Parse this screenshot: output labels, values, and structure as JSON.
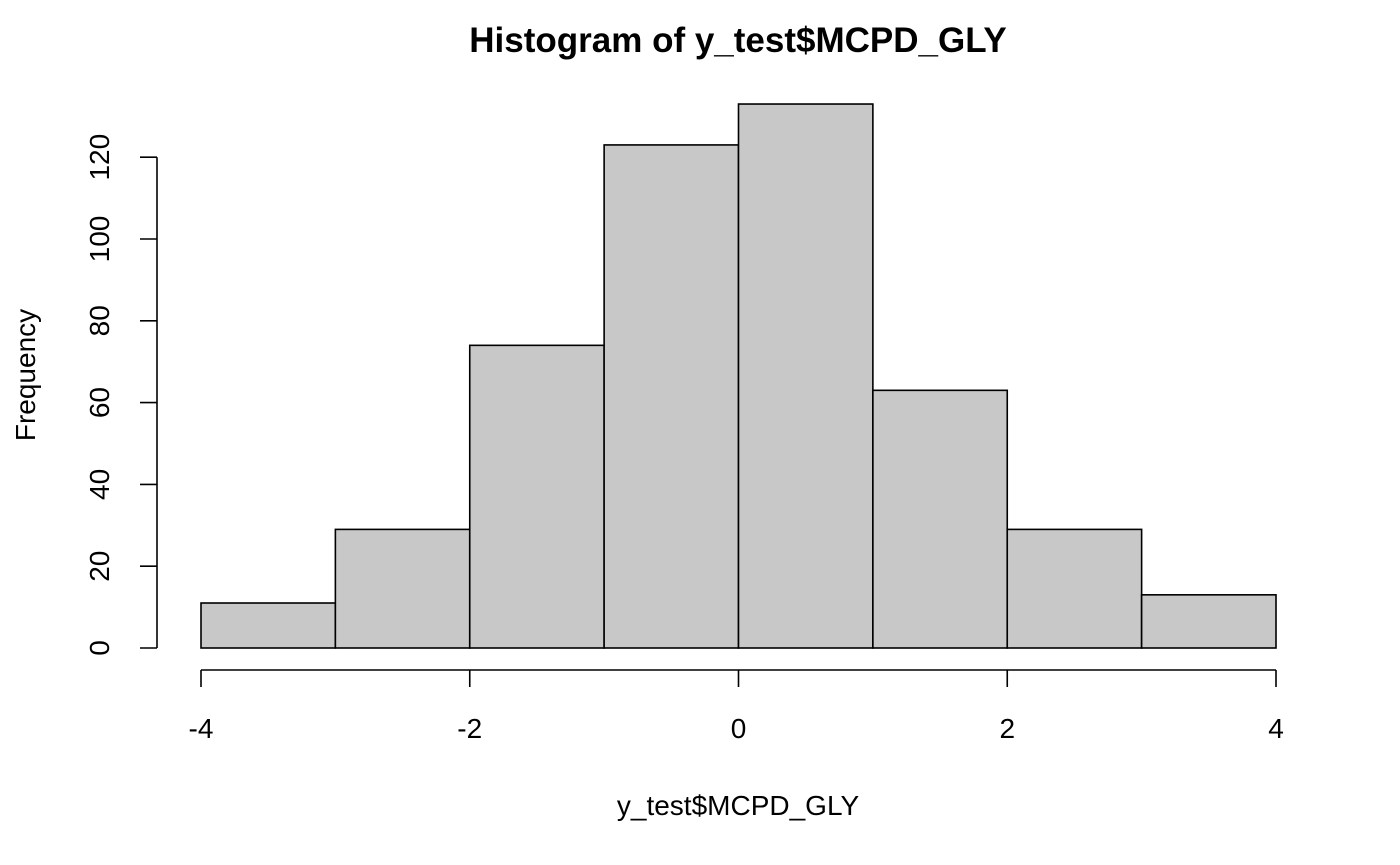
{
  "chart_data": {
    "type": "bar",
    "subtype": "histogram",
    "title": "Histogram of y_test$MCPD_GLY",
    "xlabel": "y_test$MCPD_GLY",
    "ylabel": "Frequency",
    "bins": [
      {
        "from": -4,
        "to": -3,
        "count": 11
      },
      {
        "from": -3,
        "to": -2,
        "count": 29
      },
      {
        "from": -2,
        "to": -1,
        "count": 74
      },
      {
        "from": -1,
        "to": 0,
        "count": 123
      },
      {
        "from": 0,
        "to": 1,
        "count": 133
      },
      {
        "from": 1,
        "to": 2,
        "count": 63
      },
      {
        "from": 2,
        "to": 3,
        "count": 29
      },
      {
        "from": 3,
        "to": 4,
        "count": 13
      }
    ],
    "xlim": [
      -4,
      4
    ],
    "ylim": [
      0,
      133
    ],
    "xticks": [
      {
        "value": -4,
        "label": "-4"
      },
      {
        "value": -2,
        "label": "-2"
      },
      {
        "value": 0,
        "label": "0"
      },
      {
        "value": 2,
        "label": "2"
      },
      {
        "value": 4,
        "label": "4"
      }
    ],
    "yticks": [
      {
        "value": 0,
        "label": "0"
      },
      {
        "value": 20,
        "label": "20"
      },
      {
        "value": 40,
        "label": "40"
      },
      {
        "value": 60,
        "label": "60"
      },
      {
        "value": 80,
        "label": "80"
      },
      {
        "value": 100,
        "label": "100"
      },
      {
        "value": 120,
        "label": "120"
      }
    ],
    "bar_color": "#c8c8c8",
    "border_color": "#000000",
    "grid": false,
    "legend": false
  }
}
